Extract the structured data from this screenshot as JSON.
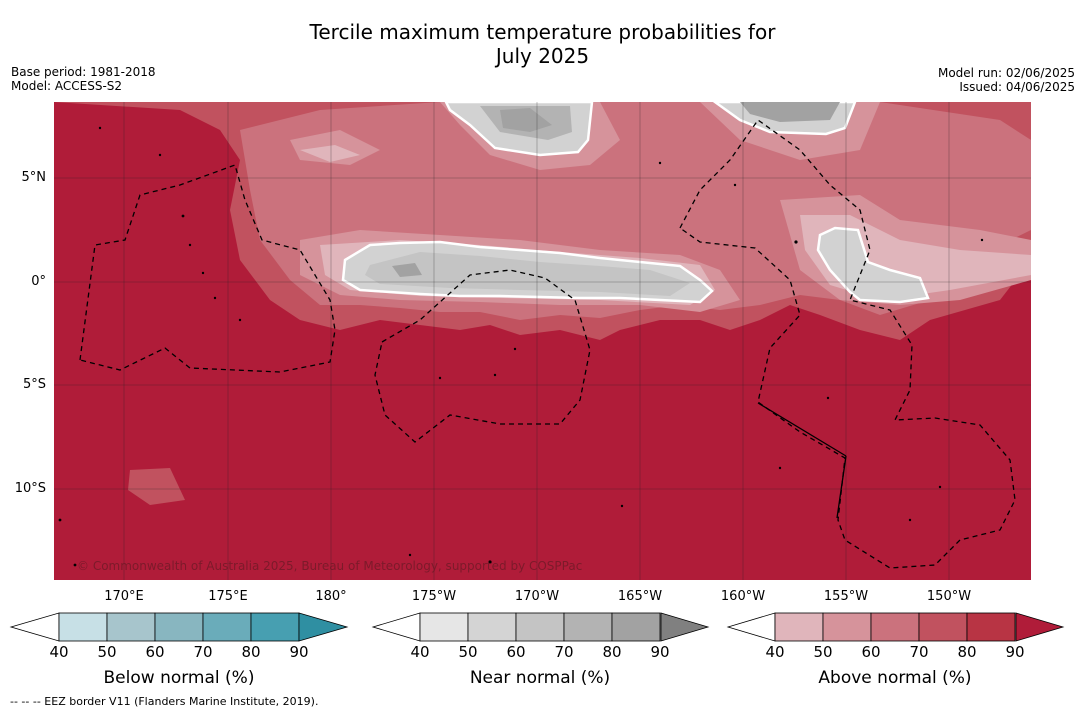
{
  "title_line1": "Tercile maximum temperature probabilities for",
  "title_line2": "July 2025",
  "meta_left": {
    "base_period": "Base period: 1981-2018",
    "model": "Model: ACCESS-S2"
  },
  "meta_right": {
    "model_run": "Model run: 02/06/2025",
    "issued": "Issued: 04/06/2025"
  },
  "copyright": "© Commonwealth of Australia 2025, Bureau of Meteorology, supported by COSPPac",
  "latitudes": [
    "5°N",
    "0°",
    "5°S",
    "10°S"
  ],
  "longitudes": [
    "170°E",
    "175°E",
    "180°",
    "175°W",
    "170°W",
    "165°W",
    "160°W",
    "155°W",
    "150°W"
  ],
  "colorbars": [
    {
      "label": "Below normal (%)",
      "ticks": [
        "40",
        "50",
        "60",
        "70",
        "80",
        "90"
      ],
      "colors": [
        "#c7e0e6",
        "#a7c5cc",
        "#88b6c0",
        "#6aacba",
        "#479fb1",
        "#2f8fa2"
      ]
    },
    {
      "label": "Near normal (%)",
      "ticks": [
        "40",
        "50",
        "60",
        "70",
        "80",
        "90"
      ],
      "colors": [
        "#e6e6e6",
        "#d4d4d4",
        "#c4c4c4",
        "#b3b3b3",
        "#a2a2a2",
        "#808080"
      ]
    },
    {
      "label": "Above normal (%)",
      "ticks": [
        "40",
        "50",
        "60",
        "70",
        "80",
        "90"
      ],
      "colors": [
        "#e0b5bb",
        "#d6939b",
        "#cb727d",
        "#c1525f",
        "#b83444",
        "#b01c39"
      ]
    }
  ],
  "eez_note": "--  --  -- EEZ border V11 (Flanders Marine Institute, 2019).",
  "map_colors": {
    "background": "#b01c39",
    "grey": "#d2d2d2"
  }
}
